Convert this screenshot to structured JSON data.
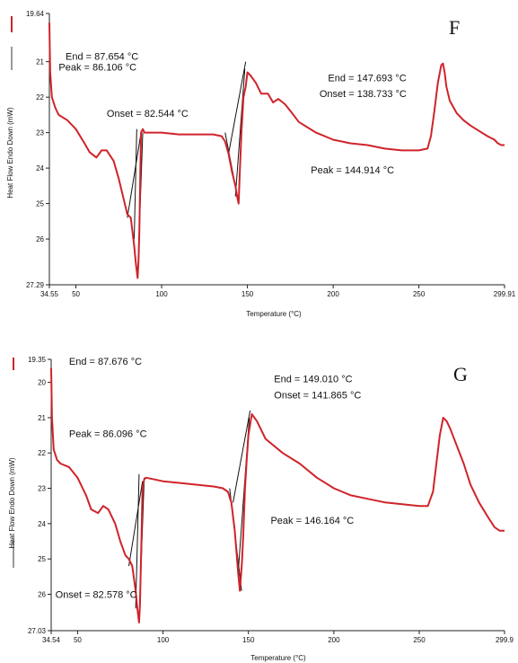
{
  "chart_data": [
    {
      "type": "line",
      "panel_label": "F",
      "xlabel": "Temperature (°C)",
      "ylabel": "Heat Flow Endo Down (mW)",
      "xlim": [
        34.55,
        299.91
      ],
      "ylim": [
        27.29,
        19.64
      ],
      "x_tick_labels": [
        "34.55",
        "50",
        "100",
        "150",
        "200",
        "250",
        "299.91"
      ],
      "x_tick_values": [
        34.55,
        50,
        100,
        150,
        200,
        250,
        299.91
      ],
      "y_tick_labels": [
        "19.64",
        "21",
        "22",
        "23",
        "24",
        "25",
        "26",
        "27.29"
      ],
      "y_tick_values": [
        19.64,
        21,
        22,
        23,
        24,
        25,
        26,
        27.29
      ],
      "series_color": "#d0232a",
      "series": [
        {
          "x": [
            34.55,
            35,
            36,
            38,
            40,
            45,
            50,
            55,
            58,
            62,
            65,
            68,
            72,
            75,
            78,
            80,
            82,
            84,
            85,
            86,
            86.5,
            87,
            87.5,
            88,
            89,
            90,
            95,
            100,
            110,
            120,
            130,
            135,
            137,
            139,
            141,
            143,
            144,
            144.9,
            145.5,
            146.5,
            147.7,
            149,
            150,
            152,
            155,
            158,
            162,
            165,
            168,
            172,
            176,
            180,
            190,
            200,
            210,
            220,
            230,
            240,
            250,
            255,
            257,
            259,
            261,
            263,
            264,
            265,
            266,
            268,
            272,
            276,
            280,
            285,
            290,
            294,
            296,
            298,
            299.91
          ],
          "y": [
            19.9,
            21.3,
            22.0,
            22.3,
            22.5,
            22.65,
            22.9,
            23.3,
            23.55,
            23.7,
            23.5,
            23.5,
            23.8,
            24.3,
            24.9,
            25.3,
            25.4,
            26.2,
            26.7,
            27.1,
            26.6,
            25.8,
            24.3,
            23.0,
            22.9,
            23.0,
            23.0,
            23.0,
            23.05,
            23.05,
            23.05,
            23.1,
            23.25,
            23.6,
            24.1,
            24.5,
            24.8,
            25.0,
            24.2,
            23.0,
            22.0,
            21.7,
            21.3,
            21.4,
            21.6,
            21.9,
            21.9,
            22.15,
            22.05,
            22.2,
            22.45,
            22.7,
            23.0,
            23.2,
            23.3,
            23.35,
            23.45,
            23.5,
            23.5,
            23.45,
            23.1,
            22.4,
            21.6,
            21.1,
            21.05,
            21.3,
            21.7,
            22.1,
            22.45,
            22.65,
            22.8,
            22.95,
            23.1,
            23.2,
            23.3,
            23.35,
            23.35
          ]
        }
      ],
      "annotations": [
        {
          "text": "End = 87.654 °C",
          "x": 44,
          "y": 20.95
        },
        {
          "text": "Peak = 86.106 °C",
          "x": 40,
          "y": 21.25
        },
        {
          "text": "Onset = 82.544 °C",
          "x": 68,
          "y": 22.55
        },
        {
          "text": "End = 147.693 °C",
          "x": 197,
          "y": 21.55
        },
        {
          "text": "Onset = 138.733 °C",
          "x": 192,
          "y": 22.0
        },
        {
          "text": "Peak = 144.914 °C",
          "x": 187,
          "y": 24.15
        }
      ]
    },
    {
      "type": "line",
      "panel_label": "G",
      "xlabel": "Temperature (°C)",
      "ylabel": "Heat Flow Endo Down (mW)",
      "xlim": [
        34.54,
        299.9
      ],
      "ylim": [
        27.03,
        19.35
      ],
      "x_tick_labels": [
        "34.54",
        "50",
        "100",
        "150",
        "200",
        "250",
        "299.9"
      ],
      "x_tick_values": [
        34.54,
        50,
        100,
        150,
        200,
        250,
        299.9
      ],
      "y_tick_labels": [
        "19.35",
        "20",
        "21",
        "22",
        "23",
        "24",
        "25",
        "26",
        "27.03"
      ],
      "y_tick_values": [
        19.35,
        20,
        21,
        22,
        23,
        24,
        25,
        26,
        27.03
      ],
      "series_color": "#d0232a",
      "series": [
        {
          "x": [
            34.54,
            35,
            36,
            38,
            40,
            45,
            50,
            55,
            58,
            62,
            65,
            68,
            72,
            75,
            78,
            80,
            82,
            84,
            85,
            86,
            86.5,
            87,
            87.5,
            88,
            89,
            90,
            95,
            100,
            110,
            120,
            130,
            135,
            138,
            140,
            142,
            144,
            145,
            146.2,
            147,
            148,
            149,
            150,
            152,
            155,
            160,
            170,
            180,
            190,
            200,
            210,
            220,
            230,
            240,
            250,
            255,
            258,
            260,
            262,
            264,
            266,
            268,
            272,
            276,
            280,
            285,
            290,
            294,
            297,
            299.9
          ],
          "y": [
            19.6,
            21.0,
            21.9,
            22.2,
            22.3,
            22.4,
            22.7,
            23.2,
            23.6,
            23.7,
            23.5,
            23.6,
            24.0,
            24.5,
            24.9,
            25.0,
            25.2,
            25.9,
            26.4,
            26.8,
            26.3,
            25.3,
            24.2,
            23.0,
            22.75,
            22.7,
            22.75,
            22.8,
            22.85,
            22.9,
            22.95,
            23.0,
            23.1,
            23.4,
            24.2,
            25.4,
            25.9,
            25.1,
            24.3,
            23.0,
            22.2,
            21.5,
            20.9,
            21.1,
            21.6,
            22.0,
            22.3,
            22.7,
            23.0,
            23.2,
            23.3,
            23.4,
            23.45,
            23.5,
            23.5,
            23.1,
            22.3,
            21.5,
            21.0,
            21.1,
            21.3,
            21.8,
            22.3,
            22.9,
            23.4,
            23.8,
            24.1,
            24.2,
            24.2
          ]
        }
      ],
      "annotations": [
        {
          "text": "End = 87.676 °C",
          "x": 45,
          "y": 19.5
        },
        {
          "text": "Peak = 86.096 °C",
          "x": 45,
          "y": 21.55
        },
        {
          "text": "Onset = 82.578 °C",
          "x": 37,
          "y": 26.1
        },
        {
          "text": "End = 149.010 °C",
          "x": 165,
          "y": 20.0
        },
        {
          "text": "Onset = 141.865 °C",
          "x": 165,
          "y": 20.45
        },
        {
          "text": "Peak = 146.164 °C",
          "x": 163,
          "y": 24.0
        }
      ]
    }
  ]
}
